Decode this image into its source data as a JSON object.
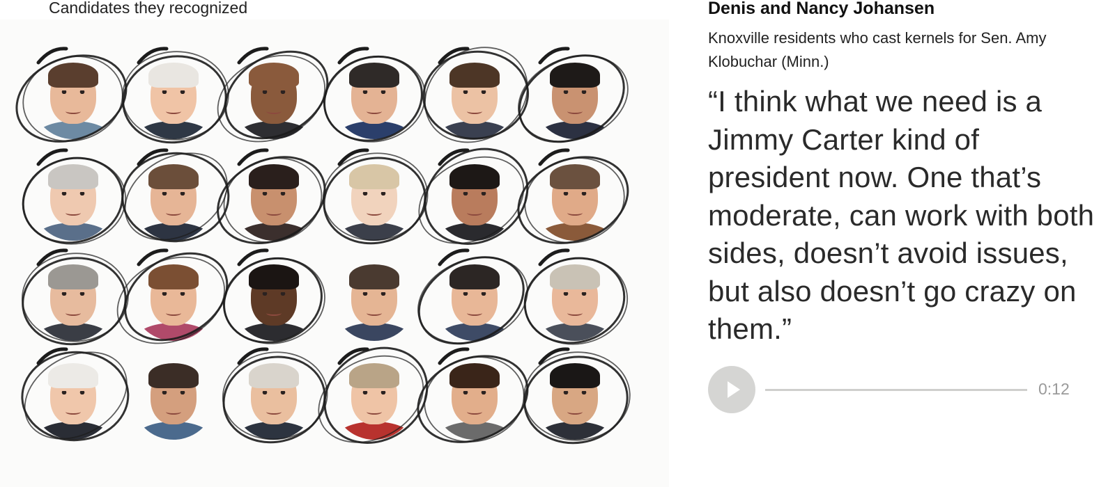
{
  "grid_caption": "Candidates they recognized",
  "voter": {
    "name": "Denis and Nancy Johansen",
    "description": "Knoxville residents who cast kernels for Sen. Amy Klobuchar (Minn.)",
    "quote": "“I think what we need is a Jimmy Carter kind of president now. One that’s moderate, can work with both sides, doesn’t avoid issues, but also doesn’t go crazy on them.”"
  },
  "audio": {
    "duration": "0:12",
    "progress": 0,
    "play_icon": "play-icon"
  },
  "portraits": [
    {
      "skin": "#e8b99a",
      "hair": "#5a3e2e",
      "shirt": "#6d8aa3",
      "circled": true
    },
    {
      "skin": "#f0c4a6",
      "hair": "#e9e6e1",
      "shirt": "#2f3845",
      "circled": true
    },
    {
      "skin": "#8a5a3c",
      "hair": "#8a5a3c",
      "shirt": "#2e2e32",
      "circled": true
    },
    {
      "skin": "#e4b394",
      "hair": "#2f2a28",
      "shirt": "#2b3f6b",
      "circled": true
    },
    {
      "skin": "#ecc2a4",
      "hair": "#4d3626",
      "shirt": "#3a4050",
      "circled": true
    },
    {
      "skin": "#c99271",
      "hair": "#1e1a18",
      "shirt": "#2c3142",
      "circled": true
    },
    {
      "skin": "#efc9b0",
      "hair": "#c9c6c2",
      "shirt": "#5a6f8a",
      "circled": true
    },
    {
      "skin": "#e6b596",
      "hair": "#6b4e3a",
      "shirt": "#2d3442",
      "circled": true
    },
    {
      "skin": "#c8906e",
      "hair": "#2a1f1c",
      "shirt": "#3b2f2d",
      "circled": true
    },
    {
      "skin": "#f1d3bd",
      "hair": "#d8c6a6",
      "shirt": "#3b3f4a",
      "circled": true
    },
    {
      "skin": "#b97c5d",
      "hair": "#1d1816",
      "shirt": "#2a2a2e",
      "circled": true
    },
    {
      "skin": "#e0aa88",
      "hair": "#6b513f",
      "shirt": "#8a5a3a",
      "circled": true
    },
    {
      "skin": "#e7bb9e",
      "hair": "#9b9893",
      "shirt": "#3a3d45",
      "circled": true
    },
    {
      "skin": "#e9b898",
      "hair": "#7b4f33",
      "shirt": "#b04a6a",
      "circled": true
    },
    {
      "skin": "#5e3a26",
      "hair": "#1b1513",
      "shirt": "#2c2c30",
      "circled": true
    },
    {
      "skin": "#e5b594",
      "hair": "#4a3a30",
      "shirt": "#3a4660",
      "circled": false
    },
    {
      "skin": "#e8b797",
      "hair": "#2c2624",
      "shirt": "#3e4b66",
      "circled": true
    },
    {
      "skin": "#e9b89a",
      "hair": "#c9c2b5",
      "shirt": "#4a4f5a",
      "circled": true
    },
    {
      "skin": "#f0c7ab",
      "hair": "#eceae6",
      "shirt": "#2a2d35",
      "circled": true
    },
    {
      "skin": "#d49f7e",
      "hair": "#3b2d26",
      "shirt": "#4b6a8d",
      "circled": false
    },
    {
      "skin": "#eabf9f",
      "hair": "#d9d4cc",
      "shirt": "#2d3440",
      "circled": true
    },
    {
      "skin": "#efc4a6",
      "hair": "#b9a487",
      "shirt": "#b8322e",
      "circled": true
    },
    {
      "skin": "#e2ae8b",
      "hair": "#3a2519",
      "shirt": "#6b6b6b",
      "circled": true
    },
    {
      "skin": "#d8a783",
      "hair": "#1a1716",
      "shirt": "#2d3038",
      "circled": true
    }
  ]
}
